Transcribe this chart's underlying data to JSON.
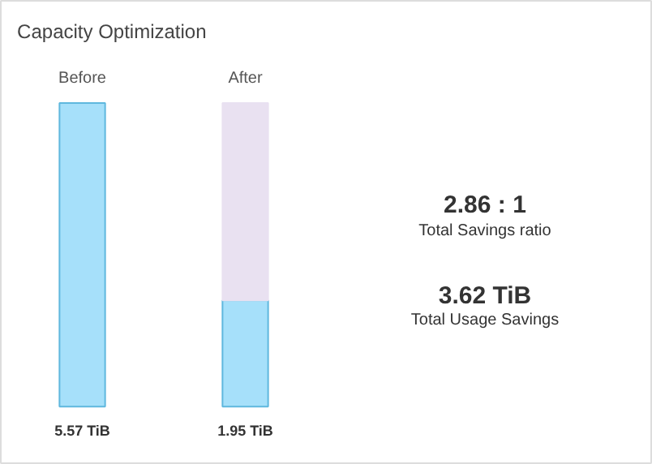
{
  "chart_data": {
    "type": "bar",
    "title": "Capacity Optimization",
    "categories": [
      "Before",
      "After"
    ],
    "stacked": true,
    "series": [
      {
        "color": "#a6e0fa",
        "values": [
          5.57,
          1.95
        ],
        "value_labels": [
          "5.57 TiB",
          "1.95 TiB"
        ]
      },
      {
        "color": "#e9e1f1",
        "values": [
          null,
          3.62
        ]
      }
    ],
    "annotations": [
      "2.86 : 1",
      "Total Savings ratio",
      "3.62 TiB",
      "Total Usage Savings"
    ]
  }
}
